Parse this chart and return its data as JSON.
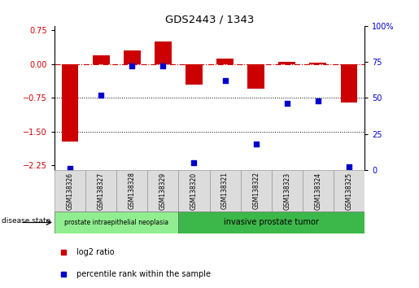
{
  "title": "GDS2443 / 1343",
  "samples": [
    "GSM138326",
    "GSM138327",
    "GSM138328",
    "GSM138329",
    "GSM138320",
    "GSM138321",
    "GSM138322",
    "GSM138323",
    "GSM138324",
    "GSM138325"
  ],
  "log2_ratio": [
    -1.72,
    0.2,
    0.3,
    0.5,
    -0.45,
    0.13,
    -0.55,
    0.05,
    0.04,
    -0.85
  ],
  "percentile": [
    1,
    52,
    72,
    72,
    5,
    62,
    18,
    46,
    48,
    2
  ],
  "ylim_left": [
    -2.35,
    0.85
  ],
  "ylim_right": [
    0,
    100
  ],
  "yticks_left": [
    0.75,
    0.0,
    -0.75,
    -1.5,
    -2.25
  ],
  "yticks_right": [
    100,
    75,
    50,
    25,
    0
  ],
  "hlines": [
    -0.75,
    -1.5
  ],
  "bar_color": "#CC0000",
  "dot_color": "#0000CC",
  "disease_groups": [
    {
      "label": "prostate intraepithelial neoplasia",
      "start": 0,
      "end": 4,
      "color": "#90EE90"
    },
    {
      "label": "invasive prostate tumor",
      "start": 4,
      "end": 10,
      "color": "#3CB84A"
    }
  ],
  "legend_items": [
    {
      "label": "log2 ratio",
      "color": "#CC0000"
    },
    {
      "label": "percentile rank within the sample",
      "color": "#0000CC"
    }
  ],
  "disease_state_label": "disease state",
  "bg_color": "#FFFFFF",
  "bar_width": 0.55
}
